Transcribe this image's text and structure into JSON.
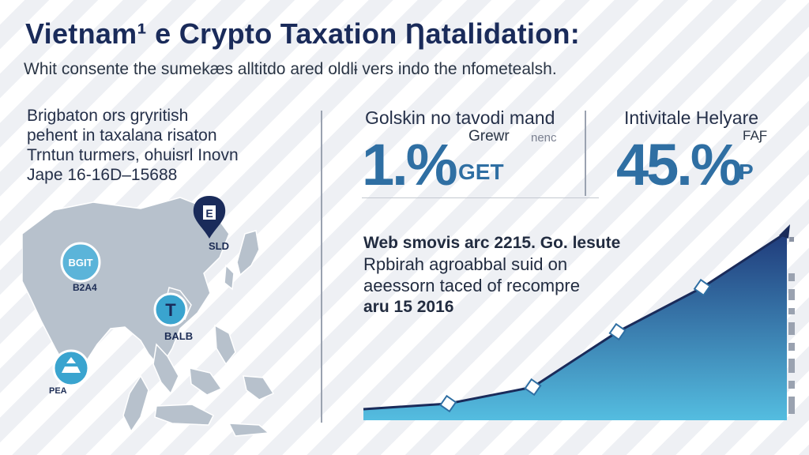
{
  "header": {
    "title": "Vietnam¹ e Crypto Taxation  Ƞatalidation:",
    "subtitle": "Whit consente the sumekæs alltitdo ared oldlɨ vers indo the nfometealsh."
  },
  "left_panel": {
    "lines": [
      "Brigbaton ors gryritish",
      "pehent in taxalana risaton",
      "Trntun turmers, ohuisrl Inovn",
      "Jape 16-16D–15688"
    ]
  },
  "stats": {
    "stat1": {
      "heading": "Golskin no tavodi mand",
      "sub": "Grewr",
      "sub2": "nenc",
      "value": "1.%",
      "suffix": "GET"
    },
    "stat2": {
      "heading": "Intivitale Helyare",
      "sub": "FAƑ",
      "value": "45.%",
      "suffix": "P"
    }
  },
  "note": {
    "lines": [
      "Web smovis arc 2215. Go. lesute",
      "Rpbirah agroabbal suid on",
      "aeessorn taced of recompre",
      "aru 15 2016"
    ]
  },
  "map_pins": {
    "pin_left": "BGIT",
    "pin_left_label": "B2A4",
    "pin_top": "E",
    "pin_top_label": "SLD",
    "pin_mid": "T",
    "pin_mid_label": "BALB",
    "pin_bottom_label": "PEA"
  },
  "chart_data": {
    "type": "area",
    "x": [
      1,
      2,
      3,
      4,
      5,
      6
    ],
    "values": [
      2,
      3,
      6,
      16,
      24,
      34
    ],
    "ylim": [
      0,
      36
    ],
    "grid": false
  },
  "colors": {
    "navy": "#1a2b5a",
    "accent_blue": "#2f6fa3",
    "area_top": "#1f3a7a",
    "area_bottom": "#54bde0",
    "map_land": "#b7c1cc",
    "pin_teal": "#3aa4cf"
  }
}
